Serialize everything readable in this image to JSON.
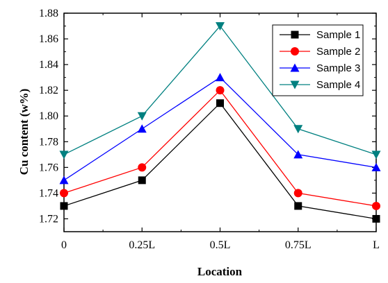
{
  "chart_data": {
    "type": "line",
    "xlabel": "Location",
    "ylabel": "Cu content (w%)",
    "categories": [
      "0",
      "0.25L",
      "0.5L",
      "0.75L",
      "L"
    ],
    "ylim": [
      1.71,
      1.88
    ],
    "yticks": [
      "1.72",
      "1.74",
      "1.76",
      "1.78",
      "1.80",
      "1.82",
      "1.84",
      "1.86",
      "1.88"
    ],
    "legend_position": "top-right",
    "grid": false,
    "series": [
      {
        "name": "Sample 1",
        "values": [
          1.73,
          1.75,
          1.81,
          1.73,
          1.72
        ],
        "color": "#000000",
        "marker": "square"
      },
      {
        "name": "Sample 2",
        "values": [
          1.74,
          1.76,
          1.82,
          1.74,
          1.73
        ],
        "color": "#ff0000",
        "marker": "circle"
      },
      {
        "name": "Sample 3",
        "values": [
          1.75,
          1.79,
          1.83,
          1.77,
          1.76
        ],
        "color": "#0000ff",
        "marker": "triangle-up"
      },
      {
        "name": "Sample 4",
        "values": [
          1.77,
          1.8,
          1.87,
          1.79,
          1.77
        ],
        "color": "#008080",
        "marker": "triangle-down"
      }
    ]
  }
}
